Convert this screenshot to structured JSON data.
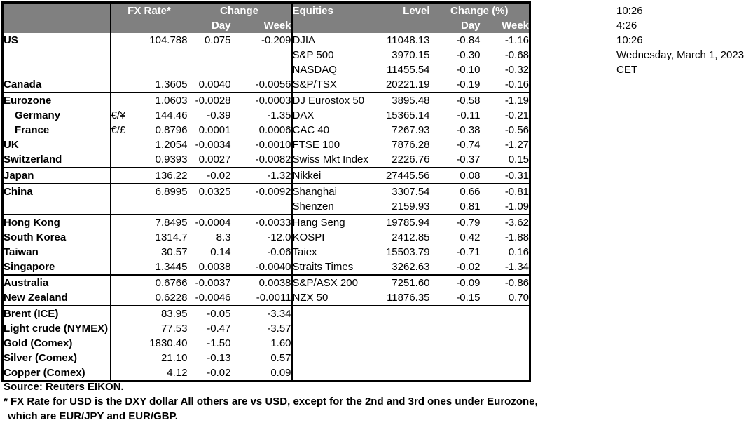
{
  "colors": {
    "header_bg": "#808080",
    "header_text": "#ffffff",
    "border": "#000000",
    "text": "#000000"
  },
  "table": {
    "headers": {
      "fx_rate": "FX Rate*",
      "change": "Change",
      "day": "Day",
      "week": "Week",
      "equities": "Equities",
      "level": "Level",
      "change_pct": "Change (%)"
    },
    "rows": [
      {
        "name": "US",
        "pair": "",
        "fx": "104.788",
        "fx_day": "0.075",
        "fx_week": "-0.209",
        "eq": "DJIA",
        "level": "11048.13",
        "eq_day": "-0.84",
        "eq_week": "-1.16",
        "indent": false,
        "group_end": false
      },
      {
        "name": "",
        "pair": "",
        "fx": "",
        "fx_day": "",
        "fx_week": "",
        "eq": "S&P 500",
        "level": "3970.15",
        "eq_day": "-0.30",
        "eq_week": "-0.68",
        "indent": false,
        "group_end": false
      },
      {
        "name": "",
        "pair": "",
        "fx": "",
        "fx_day": "",
        "fx_week": "",
        "eq": "NASDAQ",
        "level": "11455.54",
        "eq_day": "-0.10",
        "eq_week": "-0.32",
        "indent": false,
        "group_end": false
      },
      {
        "name": "Canada",
        "pair": "",
        "fx": "1.3605",
        "fx_day": "0.0040",
        "fx_week": "-0.0056",
        "eq": "S&P/TSX",
        "level": "20221.19",
        "eq_day": "-0.19",
        "eq_week": "-0.16",
        "indent": false,
        "group_end": true
      },
      {
        "name": "Eurozone",
        "pair": "",
        "fx": "1.0603",
        "fx_day": "-0.0028",
        "fx_week": "-0.0003",
        "eq": "DJ Eurostox 50",
        "level": "3895.48",
        "eq_day": "-0.58",
        "eq_week": "-1.19",
        "indent": false,
        "group_end": false
      },
      {
        "name": "Germany",
        "pair": "€/¥",
        "fx": "144.46",
        "fx_day": "-0.39",
        "fx_week": "-1.35",
        "eq": "DAX",
        "level": "15365.14",
        "eq_day": "-0.11",
        "eq_week": "-0.21",
        "indent": true,
        "group_end": false
      },
      {
        "name": "France",
        "pair": "€/£",
        "fx": "0.8796",
        "fx_day": "0.0001",
        "fx_week": "0.0006",
        "eq": "CAC 40",
        "level": "7267.93",
        "eq_day": "-0.38",
        "eq_week": "-0.56",
        "indent": true,
        "group_end": false
      },
      {
        "name": "UK",
        "pair": "",
        "fx": "1.2054",
        "fx_day": "-0.0034",
        "fx_week": "-0.0010",
        "eq": "FTSE 100",
        "level": "7876.28",
        "eq_day": "-0.74",
        "eq_week": "-1.27",
        "indent": false,
        "group_end": false
      },
      {
        "name": "Switzerland",
        "pair": "",
        "fx": "0.9393",
        "fx_day": "0.0027",
        "fx_week": "-0.0082",
        "eq": "Swiss Mkt Index",
        "level": "2226.76",
        "eq_day": "-0.37",
        "eq_week": "0.15",
        "indent": false,
        "group_end": true
      },
      {
        "name": "Japan",
        "pair": "",
        "fx": "136.22",
        "fx_day": "-0.02",
        "fx_week": "-1.32",
        "eq": "Nikkei",
        "level": "27445.56",
        "eq_day": "0.08",
        "eq_week": "-0.31",
        "indent": false,
        "group_end": true
      },
      {
        "name": "China",
        "pair": "",
        "fx": "6.8995",
        "fx_day": "0.0325",
        "fx_week": "-0.0092",
        "eq": "Shanghai",
        "level": "3307.54",
        "eq_day": "0.66",
        "eq_week": "-0.81",
        "indent": false,
        "group_end": false
      },
      {
        "name": "",
        "pair": "",
        "fx": "",
        "fx_day": "",
        "fx_week": "",
        "eq": "Shenzen",
        "level": "2159.93",
        "eq_day": "0.81",
        "eq_week": "-1.09",
        "indent": false,
        "group_end": true
      },
      {
        "name": "Hong Kong",
        "pair": "",
        "fx": "7.8495",
        "fx_day": "-0.0004",
        "fx_week": "-0.0033",
        "eq": "Hang Seng",
        "level": "19785.94",
        "eq_day": "-0.79",
        "eq_week": "-3.62",
        "indent": false,
        "group_end": false
      },
      {
        "name": "South Korea",
        "pair": "",
        "fx": "1314.7",
        "fx_day": "8.3",
        "fx_week": "-12.0",
        "eq": "KOSPI",
        "level": "2412.85",
        "eq_day": "0.42",
        "eq_week": "-1.88",
        "indent": false,
        "group_end": false
      },
      {
        "name": "Taiwan",
        "pair": "",
        "fx": "30.57",
        "fx_day": "0.14",
        "fx_week": "-0.06",
        "eq": "Taiex",
        "level": "15503.79",
        "eq_day": "-0.71",
        "eq_week": "0.16",
        "indent": false,
        "group_end": false
      },
      {
        "name": "Singapore",
        "pair": "",
        "fx": "1.3445",
        "fx_day": "0.0038",
        "fx_week": "-0.0040",
        "eq": "Straits Times",
        "level": "3262.63",
        "eq_day": "-0.02",
        "eq_week": "-1.34",
        "indent": false,
        "group_end": true
      },
      {
        "name": "Australia",
        "pair": "",
        "fx": "0.6766",
        "fx_day": "-0.0037",
        "fx_week": "0.0038",
        "eq": "S&P/ASX  200",
        "level": "7251.60",
        "eq_day": "-0.09",
        "eq_week": "-0.86",
        "indent": false,
        "group_end": false
      },
      {
        "name": "New Zealand",
        "pair": "",
        "fx": "0.6228",
        "fx_day": "-0.0046",
        "fx_week": "-0.0011",
        "eq": "NZX 50",
        "level": "11876.35",
        "eq_day": "-0.15",
        "eq_week": "0.70",
        "indent": false,
        "group_end": true
      },
      {
        "name": "Brent (ICE)",
        "pair": "",
        "fx": "83.95",
        "fx_day": "-0.05",
        "fx_week": "-3.34",
        "eq": "",
        "level": "",
        "eq_day": "",
        "eq_week": "",
        "indent": false,
        "group_end": false
      },
      {
        "name": "Light crude (NYMEX)",
        "pair": "",
        "fx": "77.53",
        "fx_day": "-0.47",
        "fx_week": "-3.57",
        "eq": "",
        "level": "",
        "eq_day": "",
        "eq_week": "",
        "indent": false,
        "group_end": false
      },
      {
        "name": "Gold (Comex)",
        "pair": "",
        "fx": "1830.40",
        "fx_day": "-1.50",
        "fx_week": "1.60",
        "eq": "",
        "level": "",
        "eq_day": "",
        "eq_week": "",
        "indent": false,
        "group_end": false
      },
      {
        "name": "Silver (Comex)",
        "pair": "",
        "fx": "21.10",
        "fx_day": "-0.13",
        "fx_week": "0.57",
        "eq": "",
        "level": "",
        "eq_day": "",
        "eq_week": "",
        "indent": false,
        "group_end": false
      },
      {
        "name": "Copper (Comex)",
        "pair": "",
        "fx": "4.12",
        "fx_day": "-0.02",
        "fx_week": "0.09",
        "eq": "",
        "level": "",
        "eq_day": "",
        "eq_week": "",
        "indent": false,
        "group_end": false
      }
    ]
  },
  "timestamps": {
    "lines": [
      "10:26",
      "4:26",
      "10:26",
      "Wednesday, March 1, 2023",
      "CET"
    ]
  },
  "footer": {
    "source": "Source:  Reuters EIKON.",
    "note_line1": "* FX Rate for USD is the DXY dollar  All others are vs USD, except for the 2nd and 3rd ones under Eurozone,",
    "note_line2": "which are EUR/JPY and EUR/GBP."
  }
}
